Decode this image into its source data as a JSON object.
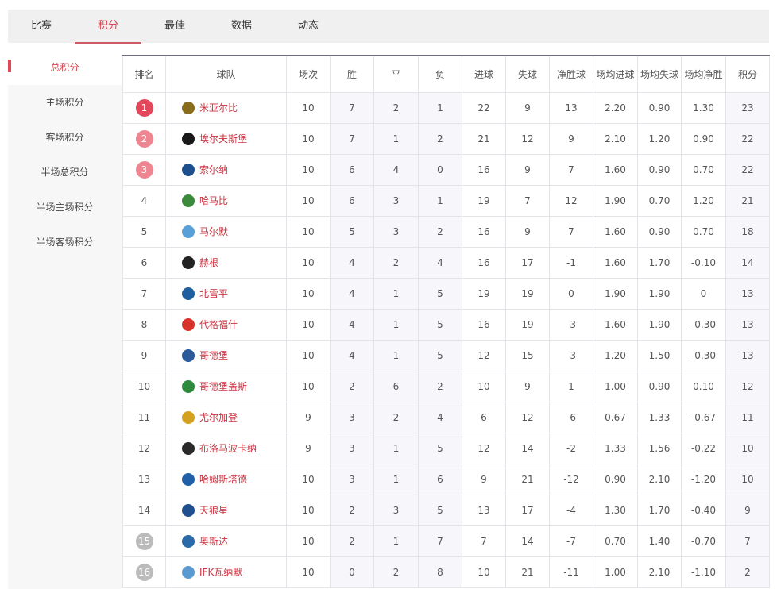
{
  "tabs": [
    {
      "label": "比赛"
    },
    {
      "label": "积分",
      "active": true
    },
    {
      "label": "最佳"
    },
    {
      "label": "数据"
    },
    {
      "label": "动态"
    }
  ],
  "sidebar": [
    {
      "label": "总积分",
      "active": true
    },
    {
      "label": "主场积分"
    },
    {
      "label": "客场积分"
    },
    {
      "label": "半场总积分"
    },
    {
      "label": "半场主场积分"
    },
    {
      "label": "半场客场积分"
    }
  ],
  "colors": {
    "accent": "#d9434f",
    "rank1": "#e2485a",
    "rank2_3": "#ee8590",
    "relegation": "#bbbbbb"
  },
  "table": {
    "headers": [
      "排名",
      "球队",
      "场次",
      "胜",
      "平",
      "负",
      "进球",
      "失球",
      "净胜球",
      "场均进球",
      "场均失球",
      "场均净胜",
      "积分"
    ],
    "rows": [
      [
        "1",
        "米亚尔比",
        "10",
        "7",
        "2",
        "1",
        "22",
        "9",
        "13",
        "2.20",
        "0.90",
        "1.30",
        "23"
      ],
      [
        "2",
        "埃尔夫斯堡",
        "10",
        "7",
        "1",
        "2",
        "21",
        "12",
        "9",
        "2.10",
        "1.20",
        "0.90",
        "22"
      ],
      [
        "3",
        "索尔纳",
        "10",
        "6",
        "4",
        "0",
        "16",
        "9",
        "7",
        "1.60",
        "0.90",
        "0.70",
        "22"
      ],
      [
        "4",
        "哈马比",
        "10",
        "6",
        "3",
        "1",
        "19",
        "7",
        "12",
        "1.90",
        "0.70",
        "1.20",
        "21"
      ],
      [
        "5",
        "马尔默",
        "10",
        "5",
        "3",
        "2",
        "16",
        "9",
        "7",
        "1.60",
        "0.90",
        "0.70",
        "18"
      ],
      [
        "6",
        "赫根",
        "10",
        "4",
        "2",
        "4",
        "16",
        "17",
        "-1",
        "1.60",
        "1.70",
        "-0.10",
        "14"
      ],
      [
        "7",
        "北雪平",
        "10",
        "4",
        "1",
        "5",
        "19",
        "19",
        "0",
        "1.90",
        "1.90",
        "0",
        "13"
      ],
      [
        "8",
        "代格福什",
        "10",
        "4",
        "1",
        "5",
        "16",
        "19",
        "-3",
        "1.60",
        "1.90",
        "-0.30",
        "13"
      ],
      [
        "9",
        "哥德堡",
        "10",
        "4",
        "1",
        "5",
        "12",
        "15",
        "-3",
        "1.20",
        "1.50",
        "-0.30",
        "13"
      ],
      [
        "10",
        "哥德堡盖斯",
        "10",
        "2",
        "6",
        "2",
        "10",
        "9",
        "1",
        "1.00",
        "0.90",
        "0.10",
        "12"
      ],
      [
        "11",
        "尤尔加登",
        "9",
        "3",
        "2",
        "4",
        "6",
        "12",
        "-6",
        "0.67",
        "1.33",
        "-0.67",
        "11"
      ],
      [
        "12",
        "布洛马波卡纳",
        "9",
        "3",
        "1",
        "5",
        "12",
        "14",
        "-2",
        "1.33",
        "1.56",
        "-0.22",
        "10"
      ],
      [
        "13",
        "哈姆斯塔德",
        "10",
        "3",
        "1",
        "6",
        "9",
        "21",
        "-12",
        "0.90",
        "2.10",
        "-1.20",
        "10"
      ],
      [
        "14",
        "天狼星",
        "10",
        "2",
        "3",
        "5",
        "13",
        "17",
        "-4",
        "1.30",
        "1.70",
        "-0.40",
        "9"
      ],
      [
        "15",
        "奥斯达",
        "10",
        "2",
        "1",
        "7",
        "7",
        "14",
        "-7",
        "0.70",
        "1.40",
        "-0.70",
        "7"
      ],
      [
        "16",
        "IFK瓦纳默",
        "10",
        "0",
        "2",
        "8",
        "10",
        "21",
        "-11",
        "1.00",
        "2.10",
        "-1.10",
        "2"
      ]
    ],
    "logo_colors": [
      "#8a6d1c",
      "#1a1a1a",
      "#1d4f8c",
      "#3b8a3b",
      "#5aa0d8",
      "#222",
      "#1f5fa0",
      "#d8332a",
      "#2a5a9a",
      "#2e8a3c",
      "#d4a020",
      "#2a2a2a",
      "#2060a8",
      "#1f4f8f",
      "#2a6aa8",
      "#5a9ad0"
    ]
  }
}
